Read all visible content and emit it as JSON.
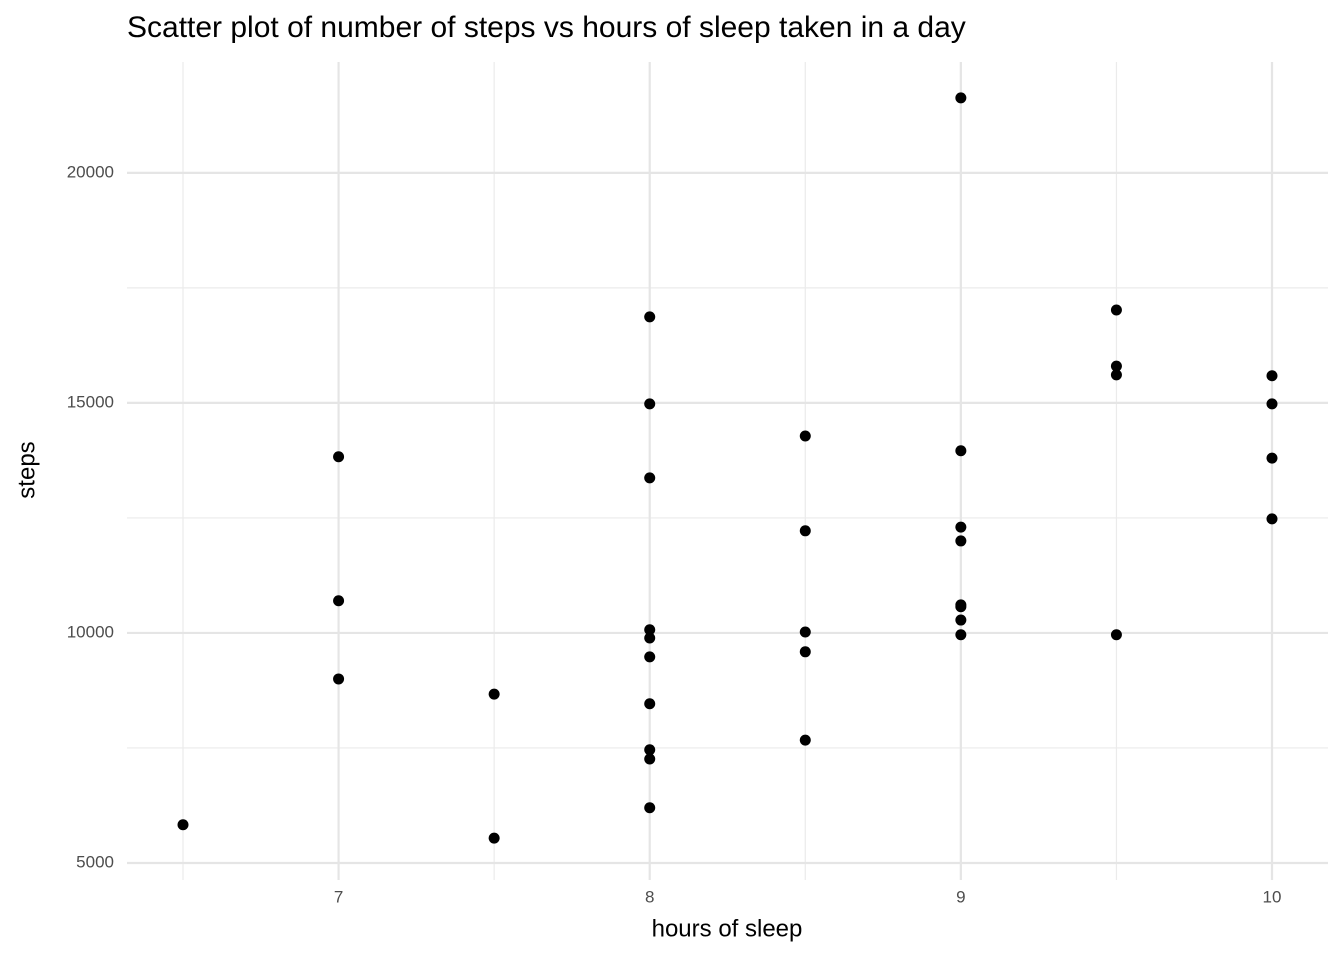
{
  "chart_data": {
    "type": "scatter",
    "title": "Scatter plot of number of steps vs hours of sleep taken in a day",
    "x_label": "hours of sleep",
    "y_label": "steps",
    "x": [
      6.5,
      7,
      7,
      7,
      7.5,
      7.5,
      8,
      8,
      8,
      8,
      8,
      8,
      8,
      8,
      8,
      8,
      8.5,
      8.5,
      8.5,
      8.5,
      8.5,
      9,
      9,
      9,
      9,
      9,
      9,
      9,
      9,
      9.5,
      9.5,
      9.5,
      9.5,
      10,
      10,
      10,
      10
    ],
    "y": [
      5830,
      13830,
      10700,
      9000,
      8670,
      5540,
      16870,
      14980,
      13370,
      10070,
      9890,
      9480,
      8460,
      7460,
      7260,
      6200,
      14280,
      12220,
      10020,
      9590,
      7670,
      21630,
      13960,
      12300,
      12000,
      10610,
      10570,
      10280,
      9960,
      17020,
      15800,
      15610,
      9960,
      15590,
      14980,
      13800,
      12480
    ],
    "color": "#000000",
    "xlim": [
      6.32,
      10.18
    ],
    "xticks": [
      7,
      8,
      9,
      10
    ],
    "ylim": [
      4630,
      22410
    ],
    "yticks": [
      5000,
      10000,
      15000,
      20000
    ],
    "grid": true
  }
}
